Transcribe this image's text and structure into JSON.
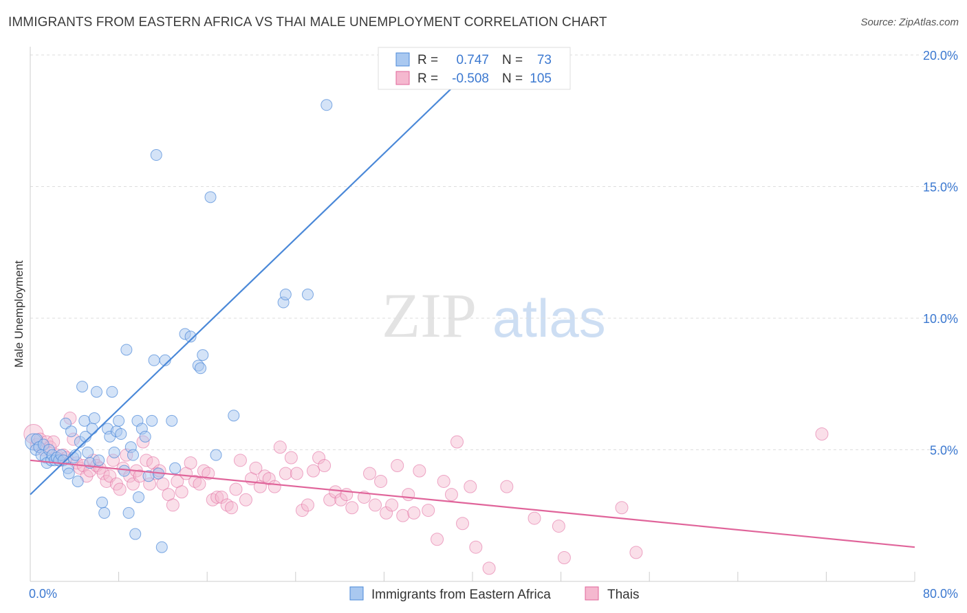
{
  "header": {
    "title": "IMMIGRANTS FROM EASTERN AFRICA VS THAI MALE UNEMPLOYMENT CORRELATION CHART",
    "source": "Source: ZipAtlas.com"
  },
  "watermark": {
    "part1": "ZIP",
    "part2": "atlas"
  },
  "colors": {
    "blue": "#4a88d8",
    "blue_fill": "#a9c8f0",
    "pink": "#e0649a",
    "pink_fill": "#f5b8cf",
    "value_text": "#3b78d0",
    "grid": "#dddddd"
  },
  "stats_legend": {
    "r_label": "R =",
    "n_label": "N =",
    "rows": [
      {
        "r": "0.747",
        "n": "73"
      },
      {
        "r": "-0.508",
        "n": "105"
      }
    ]
  },
  "chart_data": {
    "type": "scatter",
    "title": "IMMIGRANTS FROM EASTERN AFRICA VS THAI MALE UNEMPLOYMENT CORRELATION CHART",
    "xlabel": "",
    "ylabel": "Male Unemployment",
    "xlim": [
      0,
      80
    ],
    "ylim": [
      0,
      20
    ],
    "x_tick_labels": [
      "0.0%",
      "80.0%"
    ],
    "y_tick_labels": [
      "5.0%",
      "10.0%",
      "15.0%",
      "20.0%"
    ],
    "y_ticks": [
      5,
      10,
      15,
      20
    ],
    "grid": true,
    "legend_position": "bottom-center",
    "series": [
      {
        "name": "Immigrants from Eastern Africa",
        "color": "#4a88d8",
        "r": 0.747,
        "n": 73,
        "trendline": [
          [
            0,
            3.3
          ],
          [
            40,
            19.5
          ]
        ],
        "points": [
          [
            0.3,
            5.3
          ],
          [
            0.5,
            5.0
          ],
          [
            0.6,
            5.4
          ],
          [
            0.8,
            5.1
          ],
          [
            1.0,
            4.8
          ],
          [
            1.2,
            5.2
          ],
          [
            1.4,
            4.7
          ],
          [
            1.5,
            4.5
          ],
          [
            1.7,
            5.0
          ],
          [
            1.9,
            4.6
          ],
          [
            2.0,
            4.8
          ],
          [
            2.2,
            4.6
          ],
          [
            2.4,
            4.7
          ],
          [
            2.6,
            4.6
          ],
          [
            2.8,
            4.8
          ],
          [
            3.0,
            4.6
          ],
          [
            3.2,
            6.0
          ],
          [
            3.4,
            4.3
          ],
          [
            3.5,
            4.1
          ],
          [
            3.7,
            5.7
          ],
          [
            3.9,
            4.7
          ],
          [
            4.1,
            4.8
          ],
          [
            4.3,
            3.8
          ],
          [
            4.5,
            5.3
          ],
          [
            4.7,
            7.4
          ],
          [
            4.9,
            6.1
          ],
          [
            5.0,
            5.5
          ],
          [
            5.2,
            4.9
          ],
          [
            5.4,
            4.5
          ],
          [
            5.6,
            5.8
          ],
          [
            5.8,
            6.2
          ],
          [
            6.0,
            7.2
          ],
          [
            6.2,
            4.6
          ],
          [
            6.5,
            3.0
          ],
          [
            6.7,
            2.6
          ],
          [
            7.0,
            5.8
          ],
          [
            7.2,
            5.5
          ],
          [
            7.4,
            7.2
          ],
          [
            7.6,
            4.9
          ],
          [
            7.8,
            5.7
          ],
          [
            8.0,
            6.1
          ],
          [
            8.2,
            5.6
          ],
          [
            8.5,
            4.2
          ],
          [
            8.7,
            8.8
          ],
          [
            8.9,
            2.6
          ],
          [
            9.1,
            5.1
          ],
          [
            9.3,
            4.8
          ],
          [
            9.5,
            1.8
          ],
          [
            9.7,
            6.1
          ],
          [
            9.8,
            3.2
          ],
          [
            10.1,
            5.8
          ],
          [
            10.4,
            5.5
          ],
          [
            10.7,
            4.0
          ],
          [
            11.0,
            6.1
          ],
          [
            11.2,
            8.4
          ],
          [
            11.4,
            16.2
          ],
          [
            11.6,
            4.1
          ],
          [
            11.9,
            1.3
          ],
          [
            12.2,
            8.4
          ],
          [
            12.8,
            6.1
          ],
          [
            13.1,
            4.3
          ],
          [
            14.0,
            9.4
          ],
          [
            14.5,
            9.3
          ],
          [
            15.2,
            8.2
          ],
          [
            15.4,
            8.1
          ],
          [
            15.6,
            8.6
          ],
          [
            16.3,
            14.6
          ],
          [
            16.8,
            4.8
          ],
          [
            18.4,
            6.3
          ],
          [
            22.9,
            10.6
          ],
          [
            23.1,
            10.9
          ],
          [
            25.1,
            10.9
          ],
          [
            26.8,
            18.1
          ]
        ]
      },
      {
        "name": "Thais",
        "color": "#e0649a",
        "r": -0.508,
        "n": 105,
        "trendline": [
          [
            0,
            4.6
          ],
          [
            80,
            1.3
          ]
        ],
        "points": [
          [
            0.3,
            5.6
          ],
          [
            0.6,
            5.2
          ],
          [
            0.9,
            5.4
          ],
          [
            1.2,
            5.0
          ],
          [
            1.5,
            5.3
          ],
          [
            1.8,
            5.1
          ],
          [
            2.1,
            5.3
          ],
          [
            2.4,
            4.8
          ],
          [
            2.7,
            4.6
          ],
          [
            3.0,
            4.8
          ],
          [
            3.3,
            4.7
          ],
          [
            3.6,
            6.2
          ],
          [
            3.9,
            5.4
          ],
          [
            4.2,
            4.5
          ],
          [
            4.5,
            4.3
          ],
          [
            4.8,
            4.4
          ],
          [
            5.1,
            4.0
          ],
          [
            5.4,
            4.2
          ],
          [
            5.7,
            4.6
          ],
          [
            6.0,
            4.4
          ],
          [
            6.3,
            4.3
          ],
          [
            6.6,
            4.1
          ],
          [
            6.9,
            3.8
          ],
          [
            7.2,
            4.0
          ],
          [
            7.5,
            4.6
          ],
          [
            7.8,
            3.7
          ],
          [
            8.1,
            3.5
          ],
          [
            8.4,
            4.3
          ],
          [
            8.7,
            4.8
          ],
          [
            9.0,
            4.0
          ],
          [
            9.3,
            3.7
          ],
          [
            9.6,
            4.2
          ],
          [
            9.9,
            4.0
          ],
          [
            10.2,
            5.3
          ],
          [
            10.5,
            4.6
          ],
          [
            10.8,
            3.7
          ],
          [
            11.1,
            4.5
          ],
          [
            11.4,
            4.1
          ],
          [
            11.7,
            4.2
          ],
          [
            12.0,
            3.7
          ],
          [
            12.5,
            3.3
          ],
          [
            12.9,
            2.9
          ],
          [
            13.3,
            3.8
          ],
          [
            13.7,
            3.4
          ],
          [
            14.1,
            4.1
          ],
          [
            14.5,
            4.5
          ],
          [
            14.9,
            3.8
          ],
          [
            15.3,
            3.7
          ],
          [
            15.7,
            4.2
          ],
          [
            16.1,
            4.1
          ],
          [
            16.5,
            3.1
          ],
          [
            16.9,
            3.2
          ],
          [
            17.3,
            3.2
          ],
          [
            17.8,
            2.9
          ],
          [
            18.2,
            2.8
          ],
          [
            18.6,
            3.5
          ],
          [
            19.0,
            4.6
          ],
          [
            19.5,
            3.1
          ],
          [
            20.0,
            3.9
          ],
          [
            20.4,
            4.3
          ],
          [
            20.8,
            3.6
          ],
          [
            21.2,
            4.0
          ],
          [
            21.6,
            3.9
          ],
          [
            22.1,
            3.6
          ],
          [
            22.6,
            5.1
          ],
          [
            23.1,
            4.1
          ],
          [
            23.6,
            4.7
          ],
          [
            24.1,
            4.1
          ],
          [
            24.6,
            2.7
          ],
          [
            25.1,
            2.9
          ],
          [
            25.6,
            4.2
          ],
          [
            26.1,
            4.7
          ],
          [
            26.6,
            4.4
          ],
          [
            27.1,
            3.1
          ],
          [
            27.6,
            3.4
          ],
          [
            28.1,
            3.1
          ],
          [
            28.6,
            3.3
          ],
          [
            29.1,
            2.8
          ],
          [
            30.2,
            3.2
          ],
          [
            30.7,
            4.1
          ],
          [
            31.2,
            2.9
          ],
          [
            31.7,
            3.8
          ],
          [
            32.2,
            2.6
          ],
          [
            32.7,
            2.9
          ],
          [
            33.2,
            4.4
          ],
          [
            33.7,
            2.5
          ],
          [
            34.2,
            3.3
          ],
          [
            34.7,
            2.6
          ],
          [
            35.2,
            4.2
          ],
          [
            36.0,
            2.7
          ],
          [
            36.8,
            1.6
          ],
          [
            37.4,
            3.8
          ],
          [
            38.1,
            3.3
          ],
          [
            38.6,
            5.3
          ],
          [
            39.1,
            2.2
          ],
          [
            39.8,
            3.6
          ],
          [
            40.3,
            1.3
          ],
          [
            41.5,
            0.5
          ],
          [
            43.1,
            3.6
          ],
          [
            45.6,
            2.4
          ],
          [
            47.8,
            2.1
          ],
          [
            48.3,
            0.9
          ],
          [
            53.5,
            2.8
          ],
          [
            54.8,
            1.1
          ],
          [
            71.6,
            5.6
          ]
        ]
      }
    ]
  },
  "bottom_legend": {
    "items": [
      {
        "label": "Immigrants from Eastern Africa"
      },
      {
        "label": "Thais"
      }
    ]
  }
}
